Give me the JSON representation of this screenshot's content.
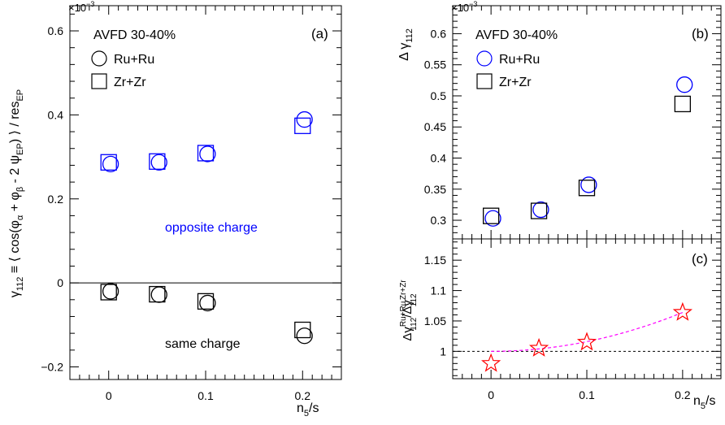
{
  "chart_data": [
    {
      "id": "a",
      "type": "scatter",
      "panel_label": "(a)",
      "title": "AVFD 30-40%",
      "exponent": "×10⁻³",
      "ylabel": "γ₁₁₂ ≡ ⟨ cos(φα + φβ - 2 ψEP) ⟩ / resEP",
      "xlabel": "n₅/s",
      "xlim": [
        -0.04,
        0.24
      ],
      "ylim": [
        -0.23,
        0.66
      ],
      "xticks": [
        0,
        0.1,
        0.2
      ],
      "yticks": [
        -0.2,
        0,
        0.2,
        0.4,
        0.6
      ],
      "hline": 0,
      "annotations": [
        "opposite charge",
        "same charge"
      ],
      "legend": [
        "Ru+Ru",
        "Zr+Zr"
      ],
      "series": [
        {
          "name": "Ru+Ru opposite charge",
          "marker": "circle",
          "color": "#0000ff",
          "x": [
            0.002,
            0.052,
            0.102,
            0.202
          ],
          "y": [
            0.283,
            0.287,
            0.307,
            0.389
          ]
        },
        {
          "name": "Zr+Zr opposite charge",
          "marker": "square",
          "color": "#0000ff",
          "x": [
            0.0,
            0.05,
            0.1,
            0.2
          ],
          "y": [
            0.287,
            0.289,
            0.309,
            0.374
          ]
        },
        {
          "name": "Ru+Ru same charge",
          "marker": "circle",
          "color": "#000000",
          "x": [
            0.002,
            0.052,
            0.102,
            0.202
          ],
          "y": [
            -0.02,
            -0.028,
            -0.048,
            -0.126
          ]
        },
        {
          "name": "Zr+Zr same charge",
          "marker": "square",
          "color": "#000000",
          "x": [
            0.0,
            0.05,
            0.1,
            0.2
          ],
          "y": [
            -0.022,
            -0.027,
            -0.044,
            -0.112
          ]
        }
      ]
    },
    {
      "id": "b",
      "type": "scatter",
      "panel_label": "(b)",
      "title": "AVFD 30-40%",
      "exponent": "×10⁻³",
      "ylabel": "Δ γ₁₁₂",
      "xlim": [
        -0.04,
        0.24
      ],
      "ylim": [
        0.27,
        0.645
      ],
      "yticks": [
        0.3,
        0.35,
        0.4,
        0.45,
        0.5,
        0.55,
        0.6
      ],
      "legend": [
        "Ru+Ru",
        "Zr+Zr"
      ],
      "series": [
        {
          "name": "Ru+Ru",
          "marker": "circle",
          "color": "#0000ff",
          "x": [
            0.002,
            0.052,
            0.102,
            0.202
          ],
          "y": [
            0.303,
            0.317,
            0.357,
            0.518
          ]
        },
        {
          "name": "Zr+Zr",
          "marker": "square",
          "color": "#000000",
          "x": [
            0.0,
            0.05,
            0.1,
            0.2
          ],
          "y": [
            0.307,
            0.315,
            0.352,
            0.487
          ]
        }
      ]
    },
    {
      "id": "c",
      "type": "scatter",
      "panel_label": "(c)",
      "ylabel": "Δγ¹¹²Ru+Ru / Δγ¹¹²Zr+Zr",
      "xlabel": "n₅/s",
      "xlim": [
        -0.04,
        0.24
      ],
      "ylim": [
        0.955,
        1.185
      ],
      "xticks": [
        0,
        0.1,
        0.2
      ],
      "yticks": [
        1,
        1.05,
        1.1,
        1.15
      ],
      "hline": 1,
      "series": [
        {
          "name": "ratio",
          "marker": "star",
          "color": "#ff0000",
          "x": [
            0.0,
            0.05,
            0.1,
            0.2
          ],
          "y": [
            0.98,
            1.005,
            1.015,
            1.064
          ]
        }
      ],
      "fit": {
        "color": "#ff00ff",
        "a": 1.0,
        "b": 0.0,
        "c": 1.6
      }
    }
  ],
  "labels": {
    "a_panel": "(a)",
    "a_title": "AVFD 30-40%",
    "a_exp": "×10",
    "a_exp_sup": "−3",
    "a_annot_opp": "opposite charge",
    "a_annot_same": "same charge",
    "legend_ru": "Ru+Ru",
    "legend_zr": "Zr+Zr",
    "b_panel": "(b)",
    "b_title": "AVFD 30-40%",
    "b_exp": "×10",
    "b_exp_sup": "−3",
    "c_panel": "(c)",
    "xlabel_n": "n",
    "xlabel_sub": "5",
    "xlabel_rest": "/s",
    "a_ylabel_1": "γ",
    "a_ylabel_2": "112",
    "a_ylabel_3": " ≡ ⟨ cos(φ",
    "a_ylabel_4": "α",
    "a_ylabel_5": " + φ",
    "a_ylabel_6": "β",
    "a_ylabel_7": " - 2 ψ",
    "a_ylabel_8": "EP",
    "a_ylabel_9": ") ⟩ / res",
    "a_ylabel_10": "EP",
    "b_ylabel_1": "Δ γ",
    "b_ylabel_2": "112",
    "c_ylabel_1": "Δγ",
    "c_ylabel_2": "Ru+Ru",
    "c_ylabel_3": "112",
    "c_ylabel_4": "/Δγ",
    "c_ylabel_5": "Zr+Zr",
    "c_ylabel_6": "112"
  }
}
